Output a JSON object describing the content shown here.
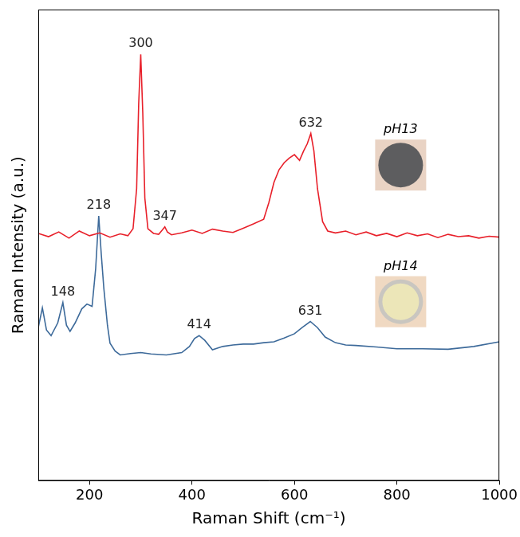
{
  "chart_data": {
    "type": "line",
    "x_label": "Raman Shift (cm⁻¹)",
    "y_label": "Raman Intensity (a.u.)",
    "xlim": [
      100,
      1000
    ],
    "xticks": [
      200,
      400,
      600,
      800,
      1000
    ],
    "ylim": [
      0,
      100
    ],
    "tick_labels": "x",
    "grid": false,
    "series": [
      {
        "name": "pH13",
        "color": "#e8202a",
        "x": [
          100,
          120,
          140,
          160,
          180,
          200,
          220,
          240,
          260,
          275,
          285,
          292,
          296,
          300,
          304,
          308,
          314,
          325,
          335,
          342,
          347,
          352,
          360,
          380,
          400,
          420,
          440,
          460,
          480,
          500,
          520,
          540,
          550,
          560,
          570,
          580,
          590,
          600,
          610,
          618,
          625,
          632,
          638,
          645,
          655,
          665,
          680,
          700,
          720,
          740,
          760,
          780,
          800,
          820,
          840,
          860,
          880,
          900,
          920,
          940,
          960,
          980,
          1000
        ],
        "values": [
          52.5,
          51.8,
          52.8,
          51.5,
          53.0,
          52.0,
          52.6,
          51.7,
          52.4,
          52.0,
          53.5,
          62,
          80,
          90.5,
          78,
          60,
          53.5,
          52.5,
          52.3,
          53.2,
          53.9,
          52.8,
          52.2,
          52.6,
          53.2,
          52.5,
          53.4,
          53.0,
          52.7,
          53.6,
          54.5,
          55.5,
          59,
          63.3,
          66,
          67.5,
          68.5,
          69.2,
          68,
          70,
          71.5,
          73.7,
          70,
          62,
          55,
          53,
          52.6,
          53.0,
          52.2,
          52.8,
          52.0,
          52.5,
          51.8,
          52.6,
          52.0,
          52.4,
          51.6,
          52.3,
          51.8,
          52.0,
          51.5,
          51.9,
          51.7
        ],
        "annotations": [
          {
            "x": 300,
            "y": 90.5,
            "text": "300"
          },
          {
            "x": 347,
            "y": 53.9,
            "text": "347"
          },
          {
            "x": 632,
            "y": 73.7,
            "text": "632"
          }
        ]
      },
      {
        "name": "pH14",
        "color": "#3d6a9a",
        "x": [
          100,
          108,
          116,
          125,
          138,
          148,
          155,
          162,
          172,
          185,
          195,
          205,
          212,
          218,
          223,
          228,
          235,
          240,
          250,
          260,
          280,
          300,
          320,
          350,
          380,
          395,
          405,
          414,
          425,
          440,
          460,
          480,
          500,
          520,
          540,
          560,
          580,
          600,
          615,
          631,
          645,
          660,
          680,
          700,
          720,
          760,
          800,
          850,
          900,
          950,
          1000
        ],
        "values": [
          32.5,
          36.7,
          32.0,
          30.8,
          33.5,
          37.8,
          33.0,
          31.7,
          33.5,
          36.5,
          37.5,
          37.0,
          45,
          56.2,
          48,
          40.8,
          33,
          29.2,
          27.5,
          26.7,
          27.0,
          27.2,
          26.9,
          26.7,
          27.2,
          28.5,
          30.2,
          30.8,
          29.8,
          27.8,
          28.5,
          28.8,
          29.0,
          29.0,
          29.3,
          29.5,
          30.3,
          31.2,
          32.5,
          33.8,
          32.5,
          30.5,
          29.3,
          28.8,
          28.7,
          28.4,
          28.0,
          28.0,
          27.9,
          28.5,
          29.5
        ],
        "annotations": [
          {
            "x": 148,
            "y": 37.8,
            "text": "148"
          },
          {
            "x": 218,
            "y": 56.2,
            "text": "218"
          },
          {
            "x": 414,
            "y": 30.8,
            "text": "414"
          },
          {
            "x": 631,
            "y": 33.8,
            "text": "631"
          }
        ]
      }
    ]
  }
}
